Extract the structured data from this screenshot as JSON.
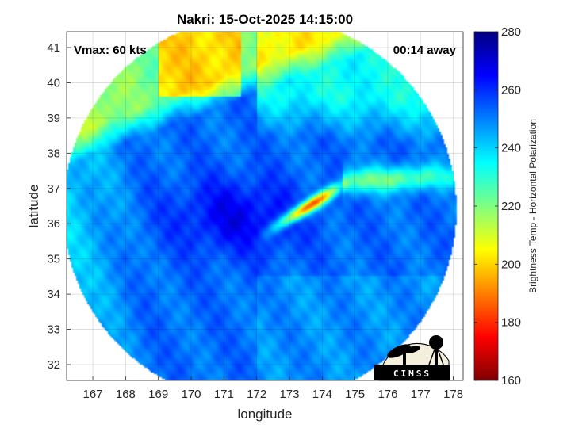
{
  "chart_data": {
    "type": "heatmap",
    "title": "Nakri: 15-Oct-2025 14:15:00",
    "xlabel": "longitude",
    "ylabel": "latitude",
    "xlim": [
      166.2,
      178.3
    ],
    "ylim": [
      31.55,
      41.45
    ],
    "xticks": [
      "167",
      "168",
      "169",
      "170",
      "171",
      "172",
      "173",
      "174",
      "175",
      "176",
      "177",
      "178"
    ],
    "yticks": [
      "32",
      "33",
      "34",
      "35",
      "36",
      "37",
      "38",
      "39",
      "40",
      "41"
    ],
    "grid": true,
    "colorbar": {
      "label": "Brightness Temp - Horizontal Polarization",
      "min": 160,
      "max": 280,
      "ticks": [
        "160",
        "180",
        "200",
        "220",
        "240",
        "260",
        "280"
      ],
      "colormap": "jet"
    },
    "swath_center": [
      172.1,
      36.4
    ],
    "swath_radius_deg": 6.0,
    "field": {
      "background_k": 252,
      "features": [
        {
          "desc": "warm northwest (cold sector)",
          "lon": 170.0,
          "lat": 40.6,
          "value_k": 190
        },
        {
          "desc": "north band",
          "lon": 172.5,
          "lat": 39.3,
          "value_k": 210
        },
        {
          "desc": "eye region",
          "lon": 171.6,
          "lat": 36.0,
          "value_k": 268
        },
        {
          "desc": "convective rainband max",
          "lon": 174.1,
          "lat": 36.7,
          "value_k": 172
        },
        {
          "desc": "rainband mid",
          "lon": 174.6,
          "lat": 37.2,
          "value_k": 215
        },
        {
          "desc": "rainband tail",
          "lon": 173.3,
          "lat": 36.0,
          "value_k": 230
        },
        {
          "desc": "east band",
          "lon": 176.5,
          "lat": 37.4,
          "value_k": 225
        },
        {
          "desc": "west flank",
          "lon": 167.2,
          "lat": 36.5,
          "value_k": 235
        }
      ]
    }
  },
  "annotations": {
    "vmax": "Vmax: 60 kts",
    "time_away": "00:14 away"
  },
  "logo": {
    "text": "CIMSS"
  }
}
